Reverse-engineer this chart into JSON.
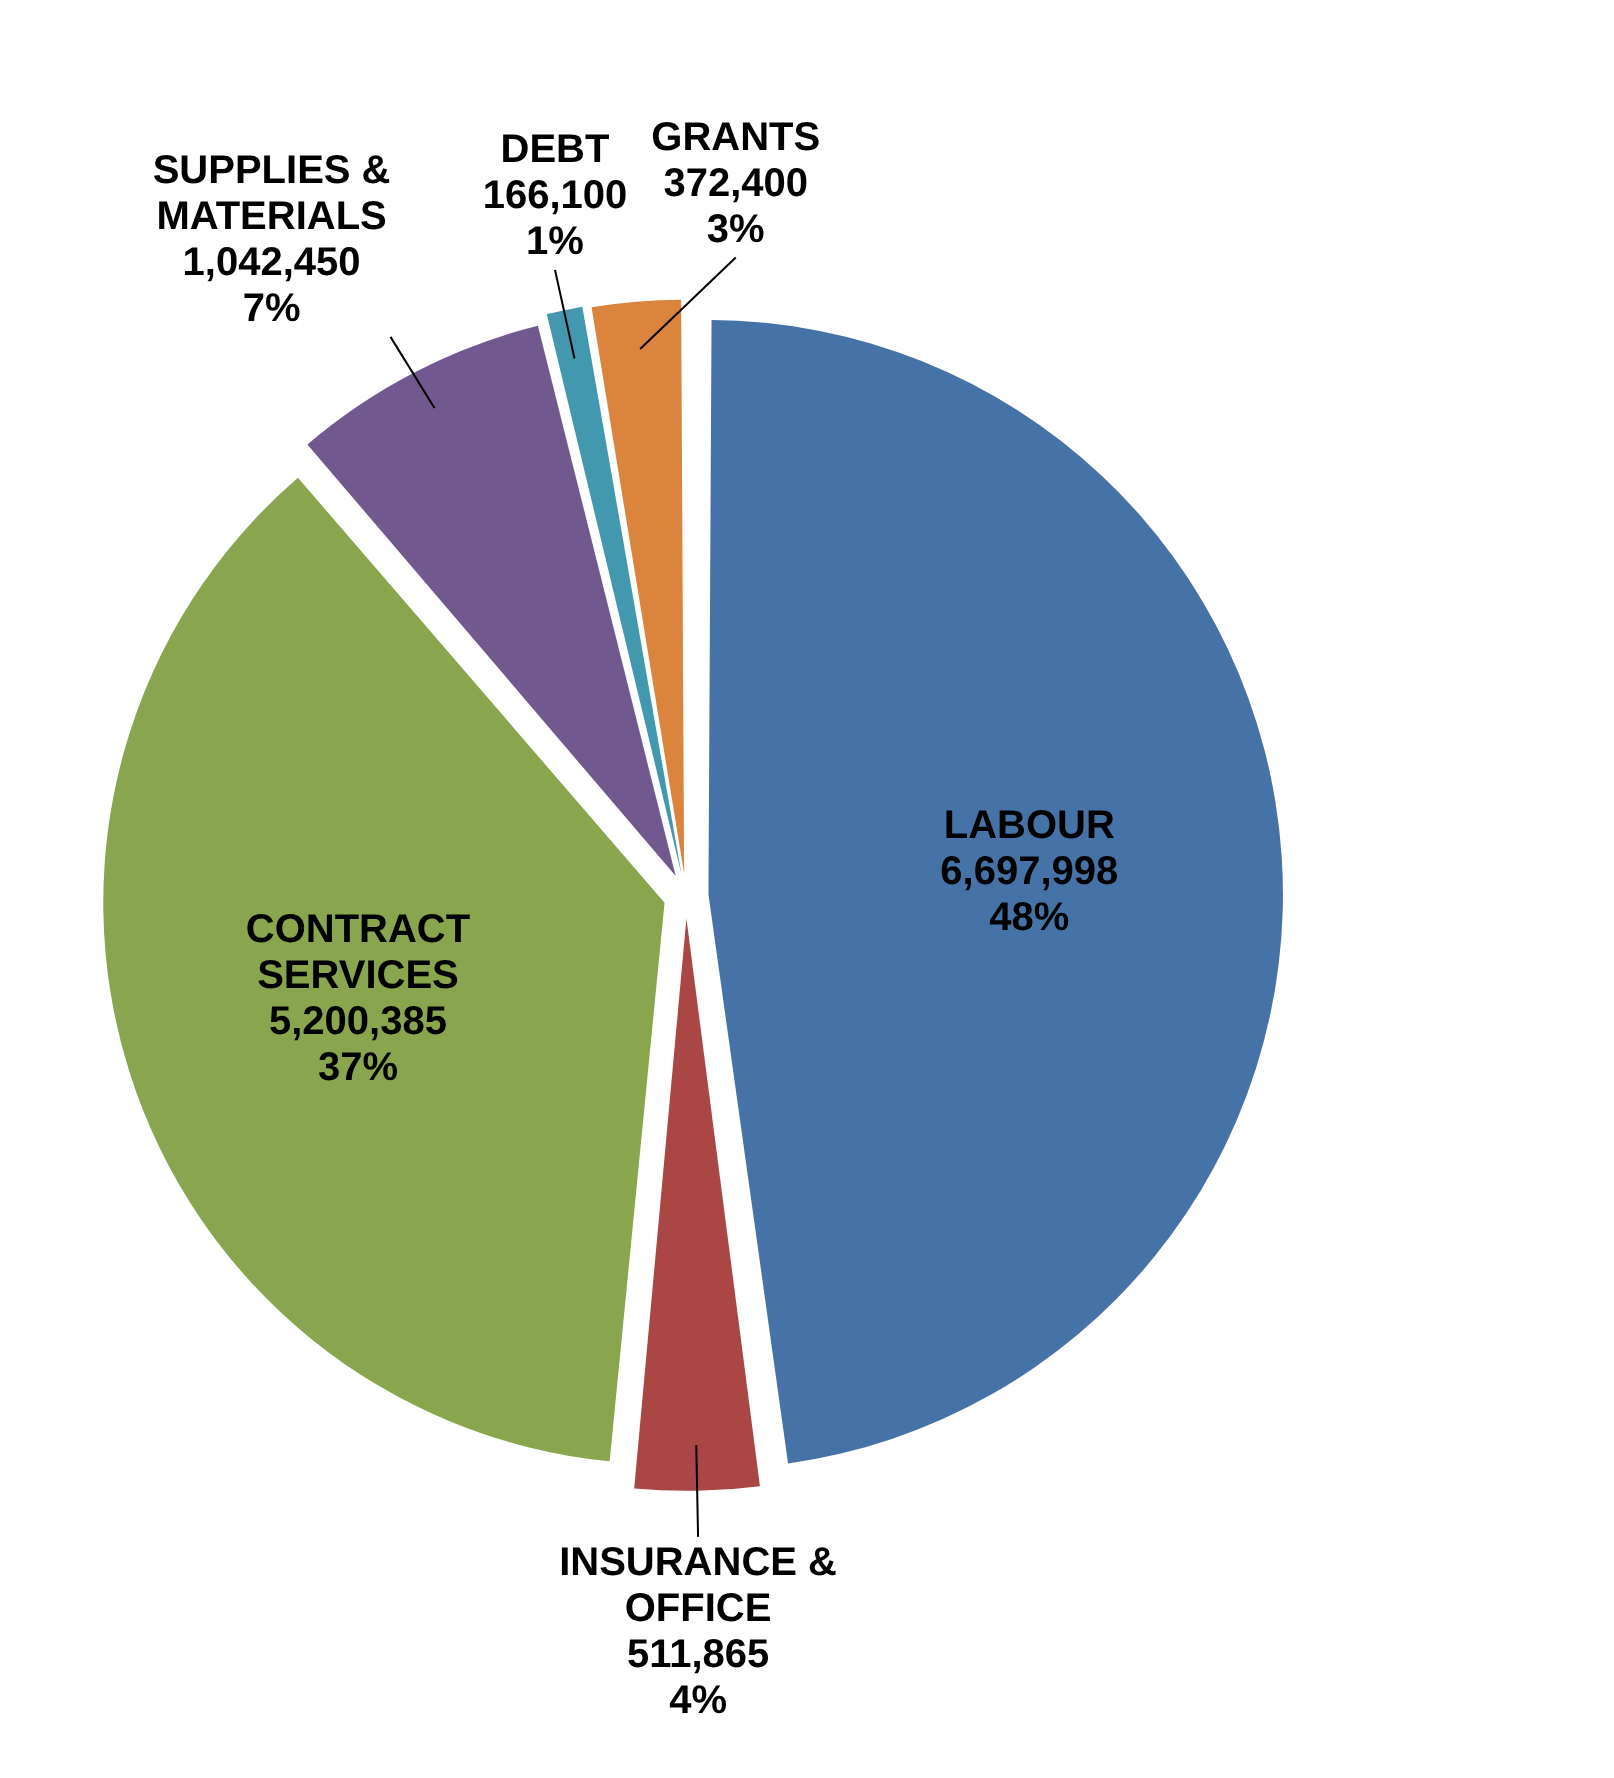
{
  "chart_data": {
    "type": "pie",
    "categories": [
      "LABOUR",
      "INSURANCE & OFFICE",
      "CONTRACT SERVICES",
      "SUPPLIES & MATERIALS",
      "DEBT",
      "GRANTS"
    ],
    "values": [
      6697998,
      511865,
      5200385,
      1042450,
      166100,
      372400
    ],
    "colors": [
      "#4573a7",
      "#aa4644",
      "#89a54e",
      "#71588f",
      "#4198af",
      "#db843d"
    ],
    "value_labels": [
      "6,697,998\n48%",
      "511,865\n4%",
      "5,200,385\n37%",
      "1,042,450\n7%",
      "166,100\n1%",
      "372,400\n3%"
    ],
    "legend": false
  }
}
